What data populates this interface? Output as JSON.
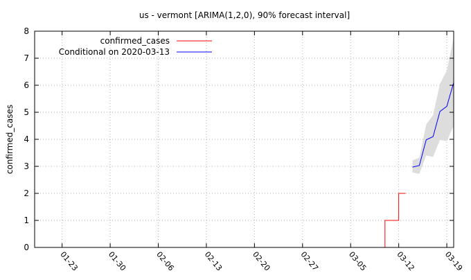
{
  "chart_data": {
    "type": "line",
    "title": "us - vermont [ARIMA(1,2,0), 90% forecast interval]",
    "xlabel": "",
    "ylabel": "confirmed_cases",
    "x_tick_labels": [
      "01-23",
      "01-30",
      "02-06",
      "02-13",
      "02-20",
      "02-27",
      "03-05",
      "03-12",
      "03-19"
    ],
    "x_ticks_dates": [
      "2020-01-23",
      "2020-01-30",
      "2020-02-06",
      "2020-02-13",
      "2020-02-20",
      "2020-02-27",
      "2020-03-05",
      "2020-03-12",
      "2020-03-19"
    ],
    "xlim": [
      "2020-01-19",
      "2020-03-20"
    ],
    "y_tick_labels": [
      "0",
      "1",
      "2",
      "3",
      "4",
      "5",
      "6",
      "7",
      "8"
    ],
    "ylim": [
      0,
      8
    ],
    "grid": true,
    "legend_position": "top-left",
    "series": [
      {
        "name": "confirmed_cases",
        "color": "#ff0000",
        "style": "step",
        "x": [
          "2020-03-09",
          "2020-03-10",
          "2020-03-11",
          "2020-03-12",
          "2020-03-13"
        ],
        "y": [
          0,
          1,
          1,
          2,
          2
        ]
      },
      {
        "name": "Conditional on 2020-03-13",
        "color": "#0000ff",
        "style": "line",
        "x": [
          "2020-03-14",
          "2020-03-15",
          "2020-03-16",
          "2020-03-17",
          "2020-03-18",
          "2020-03-19",
          "2020-03-20"
        ],
        "y": [
          2.97,
          3.03,
          3.98,
          4.1,
          5.03,
          5.22,
          6.1
        ]
      }
    ],
    "interval": {
      "color": "#dddddd",
      "x": [
        "2020-03-14",
        "2020-03-15",
        "2020-03-16",
        "2020-03-17",
        "2020-03-18",
        "2020-03-19",
        "2020-03-20"
      ],
      "lower": [
        2.77,
        2.72,
        3.4,
        3.35,
        3.98,
        3.93,
        4.5
      ],
      "upper": [
        3.22,
        3.32,
        4.55,
        4.9,
        6.05,
        6.55,
        7.75
      ]
    }
  }
}
